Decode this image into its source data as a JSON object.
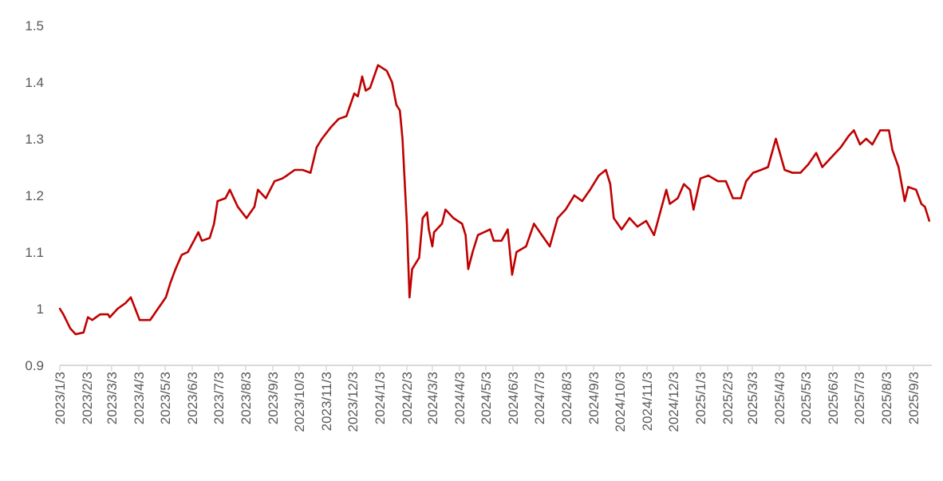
{
  "chart_data": {
    "type": "line",
    "title": "",
    "xlabel": "",
    "ylabel": "",
    "ylim": [
      0.9,
      1.5
    ],
    "yticks": [
      "0.9",
      "1",
      "1.1",
      "1.2",
      "1.3",
      "1.4",
      "1.5"
    ],
    "grid": false,
    "legend": "none",
    "line_color": "#c00000",
    "axis_color": "#d9d9d9",
    "xticks": [
      "2023/1/3",
      "2023/2/3",
      "2023/3/3",
      "2023/4/3",
      "2023/5/3",
      "2023/6/3",
      "2023/7/3",
      "2023/8/3",
      "2023/9/3",
      "2023/10/3",
      "2023/11/3",
      "2023/12/3",
      "2024/1/3",
      "2024/2/3",
      "2024/3/3",
      "2024/4/3",
      "2024/5/3",
      "2024/6/3",
      "2024/7/3",
      "2024/8/3",
      "2024/9/3",
      "2024/10/3",
      "2024/11/3",
      "2024/12/3",
      "2025/1/3",
      "2025/2/3",
      "2025/3/3",
      "2025/4/3",
      "2025/5/3",
      "2025/6/3",
      "2025/7/3",
      "2025/8/3",
      "2025/9/3"
    ],
    "series": [
      {
        "points": [
          [
            "2023-01-03",
            1.0
          ],
          [
            "2023-01-07",
            0.99
          ],
          [
            "2023-01-15",
            0.965
          ],
          [
            "2023-01-21",
            0.955
          ],
          [
            "2023-01-30",
            0.958
          ],
          [
            "2023-02-04",
            0.985
          ],
          [
            "2023-02-09",
            0.98
          ],
          [
            "2023-02-18",
            0.99
          ],
          [
            "2023-02-27",
            0.99
          ],
          [
            "2023-03-01",
            0.985
          ],
          [
            "2023-03-10",
            1.0
          ],
          [
            "2023-03-19",
            1.01
          ],
          [
            "2023-03-25",
            1.02
          ],
          [
            "2023-03-30",
            1.0
          ],
          [
            "2023-04-04",
            0.98
          ],
          [
            "2023-04-10",
            0.98
          ],
          [
            "2023-04-16",
            0.98
          ],
          [
            "2023-04-25",
            1.0
          ],
          [
            "2023-05-04",
            1.02
          ],
          [
            "2023-05-09",
            1.045
          ],
          [
            "2023-05-15",
            1.07
          ],
          [
            "2023-05-22",
            1.095
          ],
          [
            "2023-05-29",
            1.1
          ],
          [
            "2023-06-05",
            1.12
          ],
          [
            "2023-06-10",
            1.135
          ],
          [
            "2023-06-14",
            1.12
          ],
          [
            "2023-06-23",
            1.125
          ],
          [
            "2023-06-28",
            1.15
          ],
          [
            "2023-07-02",
            1.19
          ],
          [
            "2023-07-11",
            1.195
          ],
          [
            "2023-07-16",
            1.21
          ],
          [
            "2023-07-25",
            1.18
          ],
          [
            "2023-08-04",
            1.16
          ],
          [
            "2023-08-13",
            1.18
          ],
          [
            "2023-08-17",
            1.21
          ],
          [
            "2023-08-26",
            1.195
          ],
          [
            "2023-09-05",
            1.225
          ],
          [
            "2023-09-14",
            1.23
          ],
          [
            "2023-09-19",
            1.235
          ],
          [
            "2023-09-28",
            1.245
          ],
          [
            "2023-10-07",
            1.245
          ],
          [
            "2023-10-16",
            1.24
          ],
          [
            "2023-10-23",
            1.285
          ],
          [
            "2023-10-29",
            1.3
          ],
          [
            "2023-11-08",
            1.32
          ],
          [
            "2023-11-17",
            1.335
          ],
          [
            "2023-11-26",
            1.34
          ],
          [
            "2023-12-05",
            1.38
          ],
          [
            "2023-12-09",
            1.375
          ],
          [
            "2023-12-14",
            1.41
          ],
          [
            "2023-12-18",
            1.385
          ],
          [
            "2023-12-23",
            1.39
          ],
          [
            "2024-01-01",
            1.43
          ],
          [
            "2024-01-11",
            1.42
          ],
          [
            "2024-01-17",
            1.4
          ],
          [
            "2024-01-22",
            1.36
          ],
          [
            "2024-01-26",
            1.35
          ],
          [
            "2024-01-29",
            1.3
          ],
          [
            "2024-02-03",
            1.15
          ],
          [
            "2024-02-06",
            1.02
          ],
          [
            "2024-02-09",
            1.07
          ],
          [
            "2024-02-17",
            1.09
          ],
          [
            "2024-02-21",
            1.16
          ],
          [
            "2024-02-26",
            1.17
          ],
          [
            "2024-02-28",
            1.14
          ],
          [
            "2024-03-03",
            1.11
          ],
          [
            "2024-03-05",
            1.135
          ],
          [
            "2024-03-14",
            1.15
          ],
          [
            "2024-03-18",
            1.175
          ],
          [
            "2024-03-27",
            1.16
          ],
          [
            "2024-04-06",
            1.15
          ],
          [
            "2024-04-10",
            1.13
          ],
          [
            "2024-04-13",
            1.07
          ],
          [
            "2024-04-18",
            1.1
          ],
          [
            "2024-04-24",
            1.13
          ],
          [
            "2024-05-08",
            1.14
          ],
          [
            "2024-05-12",
            1.12
          ],
          [
            "2024-05-21",
            1.12
          ],
          [
            "2024-05-28",
            1.14
          ],
          [
            "2024-06-02",
            1.06
          ],
          [
            "2024-06-07",
            1.1
          ],
          [
            "2024-06-18",
            1.11
          ],
          [
            "2024-06-27",
            1.15
          ],
          [
            "2024-07-06",
            1.13
          ],
          [
            "2024-07-15",
            1.11
          ],
          [
            "2024-07-24",
            1.16
          ],
          [
            "2024-08-02",
            1.175
          ],
          [
            "2024-08-12",
            1.2
          ],
          [
            "2024-08-21",
            1.19
          ],
          [
            "2024-08-30",
            1.21
          ],
          [
            "2024-09-09",
            1.235
          ],
          [
            "2024-09-17",
            1.245
          ],
          [
            "2024-09-22",
            1.22
          ],
          [
            "2024-09-26",
            1.16
          ],
          [
            "2024-10-05",
            1.14
          ],
          [
            "2024-10-14",
            1.16
          ],
          [
            "2024-10-23",
            1.145
          ],
          [
            "2024-11-02",
            1.155
          ],
          [
            "2024-11-11",
            1.13
          ],
          [
            "2024-11-18",
            1.17
          ],
          [
            "2024-11-25",
            1.21
          ],
          [
            "2024-11-29",
            1.185
          ],
          [
            "2024-12-08",
            1.195
          ],
          [
            "2024-12-15",
            1.22
          ],
          [
            "2024-12-22",
            1.21
          ],
          [
            "2024-12-26",
            1.175
          ],
          [
            "2025-01-03",
            1.23
          ],
          [
            "2025-01-12",
            1.235
          ],
          [
            "2025-01-23",
            1.225
          ],
          [
            "2025-02-01",
            1.225
          ],
          [
            "2025-02-09",
            1.195
          ],
          [
            "2025-02-18",
            1.195
          ],
          [
            "2025-02-24",
            1.225
          ],
          [
            "2025-03-04",
            1.24
          ],
          [
            "2025-03-13",
            1.245
          ],
          [
            "2025-03-21",
            1.25
          ],
          [
            "2025-03-30",
            1.3
          ],
          [
            "2025-04-09",
            1.245
          ],
          [
            "2025-04-18",
            1.24
          ],
          [
            "2025-04-27",
            1.24
          ],
          [
            "2025-05-06",
            1.255
          ],
          [
            "2025-05-15",
            1.275
          ],
          [
            "2025-05-22",
            1.25
          ],
          [
            "2025-06-03",
            1.27
          ],
          [
            "2025-06-12",
            1.285
          ],
          [
            "2025-06-21",
            1.305
          ],
          [
            "2025-06-27",
            1.315
          ],
          [
            "2025-07-04",
            1.29
          ],
          [
            "2025-07-11",
            1.3
          ],
          [
            "2025-07-18",
            1.29
          ],
          [
            "2025-07-27",
            1.315
          ],
          [
            "2025-08-06",
            1.315
          ],
          [
            "2025-08-10",
            1.28
          ],
          [
            "2025-08-17",
            1.25
          ],
          [
            "2025-08-24",
            1.19
          ],
          [
            "2025-08-28",
            1.215
          ],
          [
            "2025-09-06",
            1.21
          ],
          [
            "2025-09-12",
            1.185
          ],
          [
            "2025-09-16",
            1.18
          ],
          [
            "2025-09-21",
            1.155
          ]
        ]
      }
    ]
  }
}
